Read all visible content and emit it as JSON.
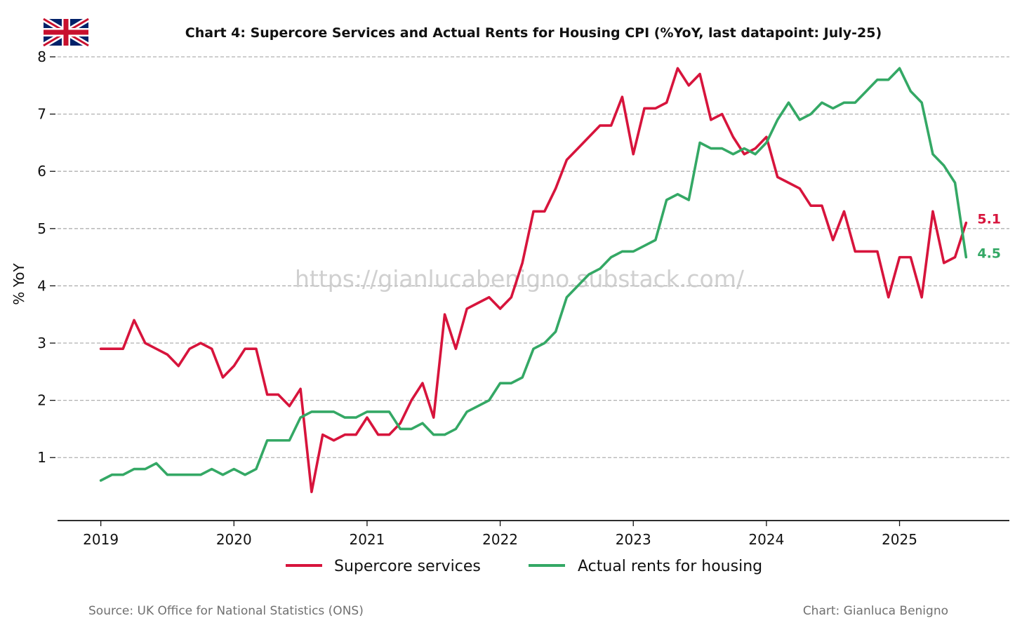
{
  "colors": {
    "supercore": "#d7143c",
    "rents": "#34a865",
    "grid": "#b0b0b0",
    "axis": "#111111"
  },
  "flag_icon": "uk-flag-icon",
  "watermark": "https://gianlucabenigno.substack.com/",
  "footer": {
    "source": "Source: UK Office for National Statistics (ONS)",
    "credit": "Chart: Gianluca Benigno"
  },
  "chart_data": {
    "type": "line",
    "title": "Chart 4: Supercore Services and Actual Rents for Housing CPI (%YoY, last datapoint: July-25)",
    "xlabel": "",
    "ylabel": "% YoY",
    "xlim": [
      2018.675,
      2025.825
    ],
    "ylim": [
      -0.1,
      8
    ],
    "grid": "horizontal-dashed",
    "legend_position": "bottom-center",
    "x_ticks": [
      2019,
      2020,
      2021,
      2022,
      2023,
      2024,
      2025
    ],
    "x_tick_labels": [
      "2019",
      "2020",
      "2021",
      "2022",
      "2023",
      "2024",
      "2025"
    ],
    "y_ticks": [
      1,
      2,
      3,
      4,
      5,
      6,
      7,
      8
    ],
    "y_tick_labels": [
      "1",
      "2",
      "3",
      "4",
      "5",
      "6",
      "7",
      "8"
    ],
    "start": "2019-01",
    "frequency": "monthly",
    "series": [
      {
        "name": "Supercore services",
        "color": "#d7143c",
        "end_label": "5.1",
        "values": [
          2.9,
          2.9,
          2.9,
          3.4,
          3.0,
          2.9,
          2.8,
          2.6,
          2.9,
          3.0,
          2.9,
          2.4,
          2.6,
          2.9,
          2.9,
          2.1,
          2.1,
          1.9,
          2.2,
          0.4,
          1.4,
          1.3,
          1.4,
          1.4,
          1.7,
          1.4,
          1.4,
          1.6,
          2.0,
          2.3,
          1.7,
          3.5,
          2.9,
          3.6,
          3.7,
          3.8,
          3.6,
          3.8,
          4.4,
          5.3,
          5.3,
          5.7,
          6.2,
          6.4,
          6.6,
          6.8,
          6.8,
          7.3,
          6.3,
          7.1,
          7.1,
          7.2,
          7.8,
          7.5,
          7.7,
          6.9,
          7.0,
          6.6,
          6.3,
          6.4,
          6.6,
          5.9,
          5.8,
          5.7,
          5.4,
          5.4,
          4.8,
          5.3,
          4.6,
          4.6,
          4.6,
          3.8,
          4.5,
          4.5,
          3.8,
          5.3,
          4.4,
          4.5,
          5.1
        ]
      },
      {
        "name": "Actual rents for housing",
        "color": "#34a865",
        "end_label": "4.5",
        "values": [
          0.6,
          0.7,
          0.7,
          0.8,
          0.8,
          0.9,
          0.7,
          0.7,
          0.7,
          0.7,
          0.8,
          0.7,
          0.8,
          0.7,
          0.8,
          1.3,
          1.3,
          1.3,
          1.7,
          1.8,
          1.8,
          1.8,
          1.7,
          1.7,
          1.8,
          1.8,
          1.8,
          1.5,
          1.5,
          1.6,
          1.4,
          1.4,
          1.5,
          1.8,
          1.9,
          2.0,
          2.3,
          2.3,
          2.4,
          2.9,
          3.0,
          3.2,
          3.8,
          4.0,
          4.2,
          4.3,
          4.5,
          4.6,
          4.6,
          4.7,
          4.8,
          5.5,
          5.6,
          5.5,
          6.5,
          6.4,
          6.4,
          6.3,
          6.4,
          6.3,
          6.5,
          6.9,
          7.2,
          6.9,
          7.0,
          7.2,
          7.1,
          7.2,
          7.2,
          7.4,
          7.6,
          7.6,
          7.8,
          7.4,
          7.2,
          6.3,
          6.1,
          5.8,
          4.5
        ]
      }
    ]
  }
}
